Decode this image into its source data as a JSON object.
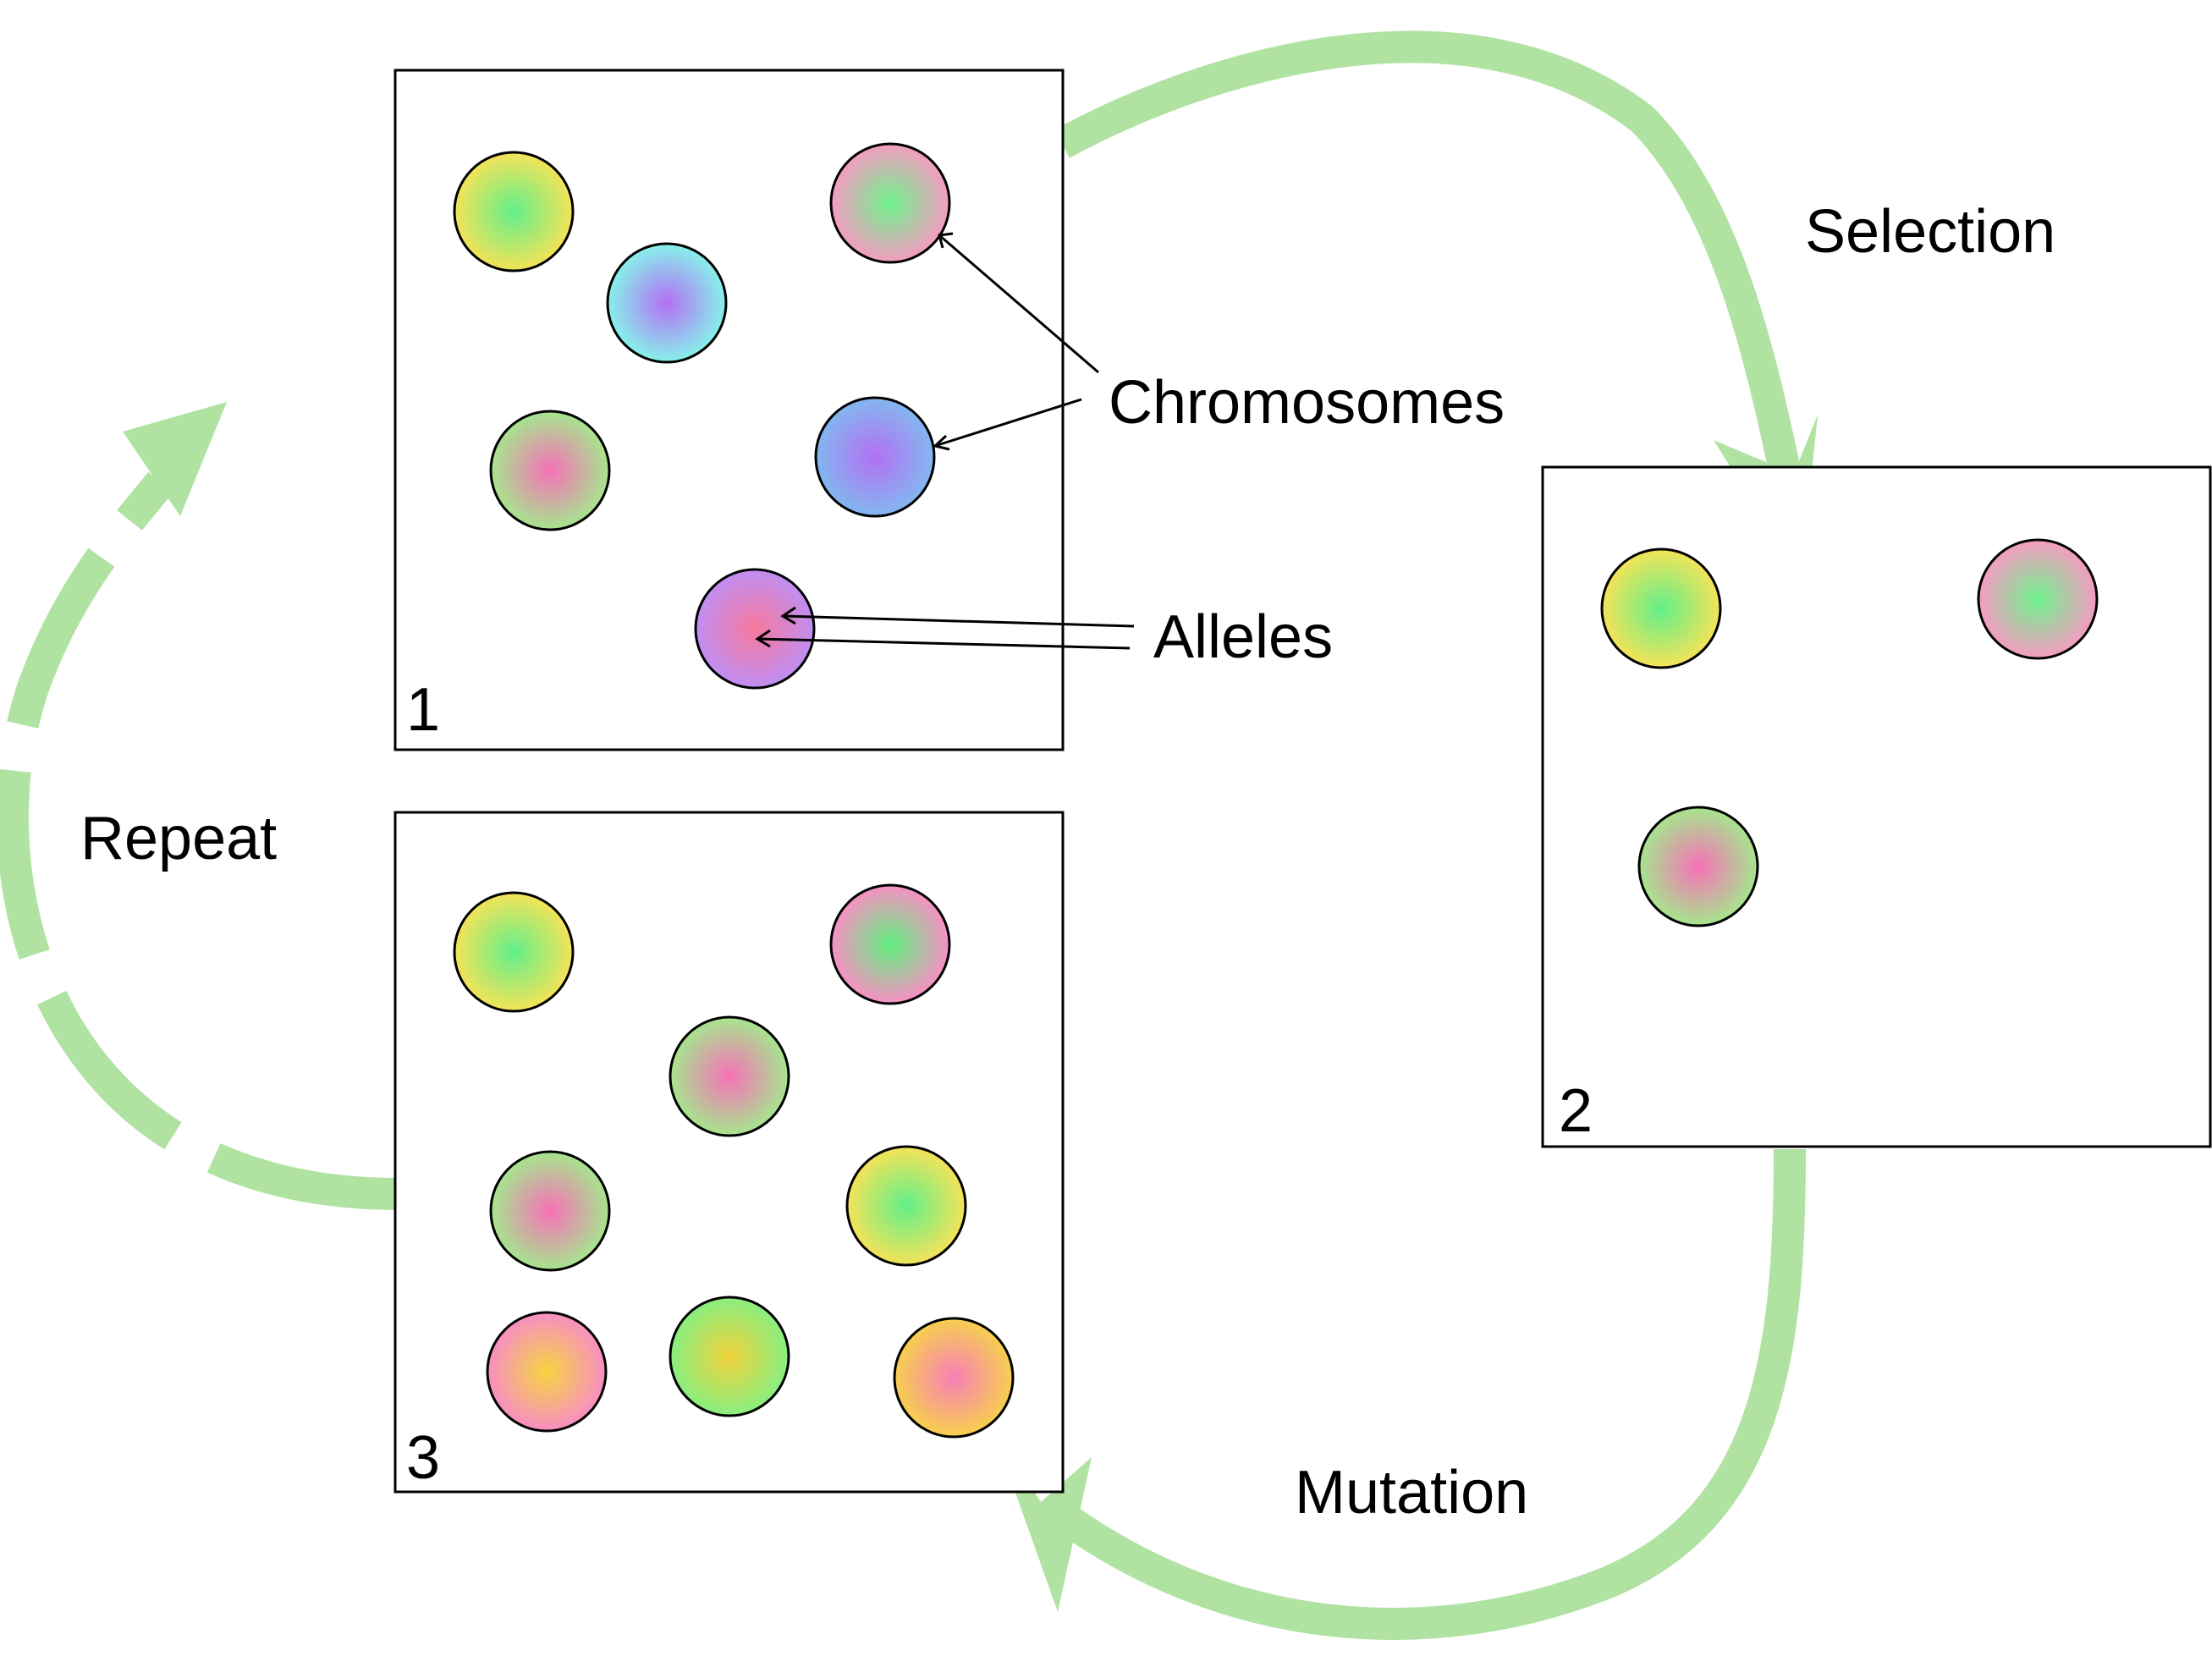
{
  "labels": {
    "selection": "Selection",
    "mutation": "Mutation",
    "repeat": "Repeat",
    "chromosomes": "Chromosomes",
    "alleles": "Alleles"
  },
  "panels": [
    {
      "number": "1",
      "chromosomes": [
        {
          "center": "#62ef8a",
          "edge": "#f4e358"
        },
        {
          "center": "#b370f4",
          "edge": "#87f1ea"
        },
        {
          "center": "#6ef28c",
          "edge": "#f59cc2"
        },
        {
          "center": "#f771b8",
          "edge": "#a6e58e"
        },
        {
          "center": "#b370f4",
          "edge": "#83b7ef"
        },
        {
          "center": "#f7799c",
          "edge": "#c08ef2"
        }
      ]
    },
    {
      "number": "2",
      "chromosomes": [
        {
          "center": "#62ef8a",
          "edge": "#f4e358"
        },
        {
          "center": "#6ef28c",
          "edge": "#f59cc2"
        },
        {
          "center": "#f771b8",
          "edge": "#a6e58e"
        }
      ]
    },
    {
      "number": "3",
      "chromosomes": [
        {
          "center": "#62ef8a",
          "edge": "#f4e358"
        },
        {
          "center": "#5fef7e",
          "edge": "#f890c4"
        },
        {
          "center": "#f771b8",
          "edge": "#a6e58e"
        },
        {
          "center": "#f771b8",
          "edge": "#a6e58e"
        },
        {
          "center": "#62ef8a",
          "edge": "#f4e358"
        },
        {
          "center": "#f6d440",
          "edge": "#f78ec3"
        },
        {
          "center": "#f1d23a",
          "edge": "#88ef80"
        },
        {
          "center": "#f77fb8",
          "edge": "#f7cf4e"
        }
      ]
    }
  ],
  "colors": {
    "arrow": "#b0e2a2"
  }
}
